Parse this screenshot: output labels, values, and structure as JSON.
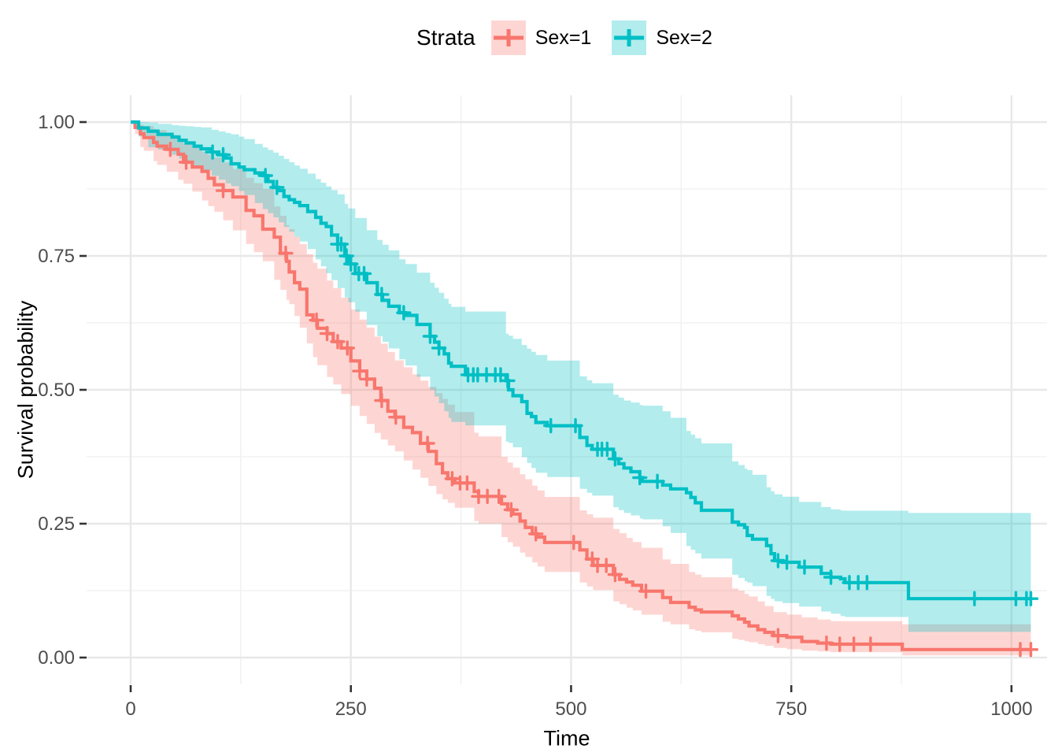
{
  "colors": {
    "sex1_line": "#F8766D",
    "sex2_line": "#00BFC4",
    "ribbon_opacity": 0.3,
    "grid_major": "#E8E8E8",
    "grid_minor": "#F2F2F2",
    "tick_mark": "#333333",
    "tick_label": "#4D4D4D",
    "axis_title": "#000000",
    "background": "#FFFFFF"
  },
  "chart_data": {
    "type": "line",
    "subtype": "kaplan-meier-step",
    "title": "",
    "xlabel": "Time",
    "ylabel": "Survival probability",
    "legend_title": "Strata",
    "legend_position": "top",
    "grid": "major-and-minor",
    "xlim": [
      0,
      1040
    ],
    "ylim": [
      0,
      1
    ],
    "x_ticks": [
      0,
      250,
      500,
      750,
      1000
    ],
    "x_tick_labels": [
      "0",
      "250",
      "500",
      "750",
      "1000"
    ],
    "x_minor_ticks": [
      125,
      375,
      625,
      875
    ],
    "y_ticks": [
      0,
      0.25,
      0.5,
      0.75,
      1
    ],
    "y_tick_labels": [
      "0.00",
      "0.25",
      "0.50",
      "0.75",
      "1.00"
    ],
    "y_minor_ticks": [
      0.125,
      0.375,
      0.625,
      0.875
    ],
    "x_end": 1022,
    "series": [
      {
        "name": "Sex=1",
        "color": "#F8766D",
        "steps": [
          [
            0,
            1.0
          ],
          [
            5,
            0.99
          ],
          [
            11,
            0.978
          ],
          [
            15,
            0.971
          ],
          [
            26,
            0.962
          ],
          [
            30,
            0.955
          ],
          [
            41,
            0.949
          ],
          [
            54,
            0.94
          ],
          [
            60,
            0.925
          ],
          [
            70,
            0.916
          ],
          [
            81,
            0.908
          ],
          [
            88,
            0.895
          ],
          [
            95,
            0.883
          ],
          [
            105,
            0.872
          ],
          [
            116,
            0.86
          ],
          [
            131,
            0.835
          ],
          [
            140,
            0.825
          ],
          [
            150,
            0.8
          ],
          [
            163,
            0.785
          ],
          [
            170,
            0.755
          ],
          [
            177,
            0.74
          ],
          [
            180,
            0.72
          ],
          [
            186,
            0.7
          ],
          [
            192,
            0.688
          ],
          [
            200,
            0.64
          ],
          [
            207,
            0.63
          ],
          [
            212,
            0.615
          ],
          [
            223,
            0.605
          ],
          [
            230,
            0.59
          ],
          [
            239,
            0.578
          ],
          [
            250,
            0.554
          ],
          [
            260,
            0.535
          ],
          [
            268,
            0.52
          ],
          [
            277,
            0.503
          ],
          [
            284,
            0.48
          ],
          [
            292,
            0.46
          ],
          [
            300,
            0.449
          ],
          [
            310,
            0.43
          ],
          [
            320,
            0.42
          ],
          [
            329,
            0.4
          ],
          [
            338,
            0.385
          ],
          [
            347,
            0.362
          ],
          [
            354,
            0.345
          ],
          [
            360,
            0.334
          ],
          [
            368,
            0.326
          ],
          [
            390,
            0.31
          ],
          [
            395,
            0.301
          ],
          [
            421,
            0.287
          ],
          [
            428,
            0.276
          ],
          [
            434,
            0.268
          ],
          [
            442,
            0.255
          ],
          [
            448,
            0.243
          ],
          [
            456,
            0.231
          ],
          [
            462,
            0.225
          ],
          [
            470,
            0.215
          ],
          [
            510,
            0.201
          ],
          [
            518,
            0.184
          ],
          [
            525,
            0.172
          ],
          [
            548,
            0.155
          ],
          [
            555,
            0.146
          ],
          [
            563,
            0.141
          ],
          [
            570,
            0.135
          ],
          [
            580,
            0.124
          ],
          [
            604,
            0.112
          ],
          [
            613,
            0.103
          ],
          [
            634,
            0.094
          ],
          [
            641,
            0.089
          ],
          [
            648,
            0.085
          ],
          [
            683,
            0.078
          ],
          [
            690,
            0.072
          ],
          [
            697,
            0.066
          ],
          [
            702,
            0.059
          ],
          [
            712,
            0.052
          ],
          [
            720,
            0.047
          ],
          [
            730,
            0.041
          ],
          [
            745,
            0.038
          ],
          [
            762,
            0.03
          ],
          [
            780,
            0.027
          ],
          [
            795,
            0.025
          ],
          [
            876,
            0.015
          ]
        ],
        "censor_times": [
          45,
          63,
          105,
          176,
          211,
          223,
          235,
          246,
          260,
          268,
          285,
          301,
          337,
          365,
          374,
          382,
          395,
          405,
          418,
          432,
          460,
          503,
          524,
          530,
          540,
          550,
          585,
          735,
          790,
          805,
          821,
          840,
          1010,
          1022
        ],
        "ci": [
          [
            0,
            1.0,
            1.0
          ],
          [
            10,
            0.955,
            0.995
          ],
          [
            30,
            0.92,
            0.985
          ],
          [
            60,
            0.885,
            0.96
          ],
          [
            100,
            0.825,
            0.93
          ],
          [
            150,
            0.74,
            0.875
          ],
          [
            180,
            0.66,
            0.8
          ],
          [
            210,
            0.55,
            0.73
          ],
          [
            250,
            0.47,
            0.65
          ],
          [
            282,
            0.41,
            0.59
          ],
          [
            300,
            0.385,
            0.555
          ],
          [
            350,
            0.3,
            0.49
          ],
          [
            390,
            0.255,
            0.42
          ],
          [
            421,
            0.225,
            0.375
          ],
          [
            450,
            0.185,
            0.33
          ],
          [
            470,
            0.16,
            0.3
          ],
          [
            510,
            0.14,
            0.275
          ],
          [
            548,
            0.105,
            0.24
          ],
          [
            580,
            0.08,
            0.205
          ],
          [
            613,
            0.062,
            0.175
          ],
          [
            648,
            0.047,
            0.15
          ],
          [
            690,
            0.033,
            0.125
          ],
          [
            712,
            0.025,
            0.105
          ],
          [
            730,
            0.018,
            0.085
          ],
          [
            762,
            0.013,
            0.075
          ],
          [
            795,
            0.01,
            0.068
          ],
          [
            876,
            0.004,
            0.062
          ],
          [
            1022,
            0.003,
            0.06
          ]
        ]
      },
      {
        "name": "Sex=2",
        "color": "#00BFC4",
        "steps": [
          [
            0,
            1.0
          ],
          [
            9,
            0.989
          ],
          [
            20,
            0.983
          ],
          [
            31,
            0.977
          ],
          [
            47,
            0.972
          ],
          [
            55,
            0.966
          ],
          [
            63,
            0.961
          ],
          [
            72,
            0.955
          ],
          [
            80,
            0.95
          ],
          [
            92,
            0.944
          ],
          [
            100,
            0.939
          ],
          [
            108,
            0.933
          ],
          [
            114,
            0.922
          ],
          [
            123,
            0.916
          ],
          [
            129,
            0.911
          ],
          [
            141,
            0.905
          ],
          [
            150,
            0.9
          ],
          [
            156,
            0.889
          ],
          [
            162,
            0.878
          ],
          [
            168,
            0.872
          ],
          [
            174,
            0.861
          ],
          [
            180,
            0.855
          ],
          [
            186,
            0.85
          ],
          [
            192,
            0.844
          ],
          [
            201,
            0.833
          ],
          [
            210,
            0.822
          ],
          [
            216,
            0.811
          ],
          [
            222,
            0.805
          ],
          [
            228,
            0.789
          ],
          [
            235,
            0.772
          ],
          [
            243,
            0.75
          ],
          [
            247,
            0.735
          ],
          [
            255,
            0.717
          ],
          [
            268,
            0.7
          ],
          [
            280,
            0.678
          ],
          [
            286,
            0.667
          ],
          [
            293,
            0.656
          ],
          [
            305,
            0.644
          ],
          [
            312,
            0.639
          ],
          [
            325,
            0.622
          ],
          [
            340,
            0.6
          ],
          [
            345,
            0.589
          ],
          [
            350,
            0.578
          ],
          [
            356,
            0.567
          ],
          [
            361,
            0.55
          ],
          [
            364,
            0.544
          ],
          [
            380,
            0.528
          ],
          [
            426,
            0.517
          ],
          [
            429,
            0.5
          ],
          [
            434,
            0.489
          ],
          [
            444,
            0.478
          ],
          [
            450,
            0.456
          ],
          [
            455,
            0.45
          ],
          [
            460,
            0.439
          ],
          [
            473,
            0.433
          ],
          [
            510,
            0.411
          ],
          [
            518,
            0.396
          ],
          [
            524,
            0.389
          ],
          [
            548,
            0.371
          ],
          [
            554,
            0.362
          ],
          [
            560,
            0.354
          ],
          [
            568,
            0.347
          ],
          [
            578,
            0.336
          ],
          [
            581,
            0.329
          ],
          [
            604,
            0.322
          ],
          [
            613,
            0.315
          ],
          [
            631,
            0.308
          ],
          [
            636,
            0.299
          ],
          [
            641,
            0.289
          ],
          [
            648,
            0.275
          ],
          [
            683,
            0.253
          ],
          [
            690,
            0.248
          ],
          [
            697,
            0.243
          ],
          [
            700,
            0.228
          ],
          [
            706,
            0.221
          ],
          [
            722,
            0.209
          ],
          [
            727,
            0.194
          ],
          [
            731,
            0.181
          ],
          [
            740,
            0.178
          ],
          [
            759,
            0.169
          ],
          [
            784,
            0.157
          ],
          [
            795,
            0.15
          ],
          [
            806,
            0.147
          ],
          [
            811,
            0.14
          ],
          [
            883,
            0.11
          ]
        ],
        "censor_times": [
          93,
          105,
          153,
          166,
          235,
          239,
          245,
          250,
          259,
          265,
          285,
          310,
          340,
          350,
          383,
          389,
          394,
          404,
          414,
          420,
          428,
          477,
          505,
          530,
          535,
          541,
          550,
          578,
          598,
          735,
          745,
          765,
          795,
          816,
          826,
          836,
          958,
          1005,
          1017,
          1022
        ],
        "ci": [
          [
            0,
            1.0,
            1.0
          ],
          [
            15,
            0.955,
            1.0
          ],
          [
            40,
            0.945,
            0.995
          ],
          [
            80,
            0.91,
            0.99
          ],
          [
            120,
            0.875,
            0.975
          ],
          [
            160,
            0.825,
            0.945
          ],
          [
            200,
            0.765,
            0.905
          ],
          [
            235,
            0.69,
            0.865
          ],
          [
            260,
            0.635,
            0.81
          ],
          [
            300,
            0.565,
            0.75
          ],
          [
            340,
            0.5,
            0.7
          ],
          [
            364,
            0.44,
            0.655
          ],
          [
            400,
            0.425,
            0.635
          ],
          [
            430,
            0.4,
            0.6
          ],
          [
            460,
            0.345,
            0.565
          ],
          [
            510,
            0.315,
            0.525
          ],
          [
            560,
            0.27,
            0.48
          ],
          [
            604,
            0.245,
            0.46
          ],
          [
            648,
            0.185,
            0.4
          ],
          [
            700,
            0.14,
            0.35
          ],
          [
            731,
            0.105,
            0.305
          ],
          [
            760,
            0.095,
            0.29
          ],
          [
            800,
            0.08,
            0.275
          ],
          [
            883,
            0.048,
            0.27
          ],
          [
            1022,
            0.047,
            0.267
          ]
        ]
      }
    ]
  }
}
